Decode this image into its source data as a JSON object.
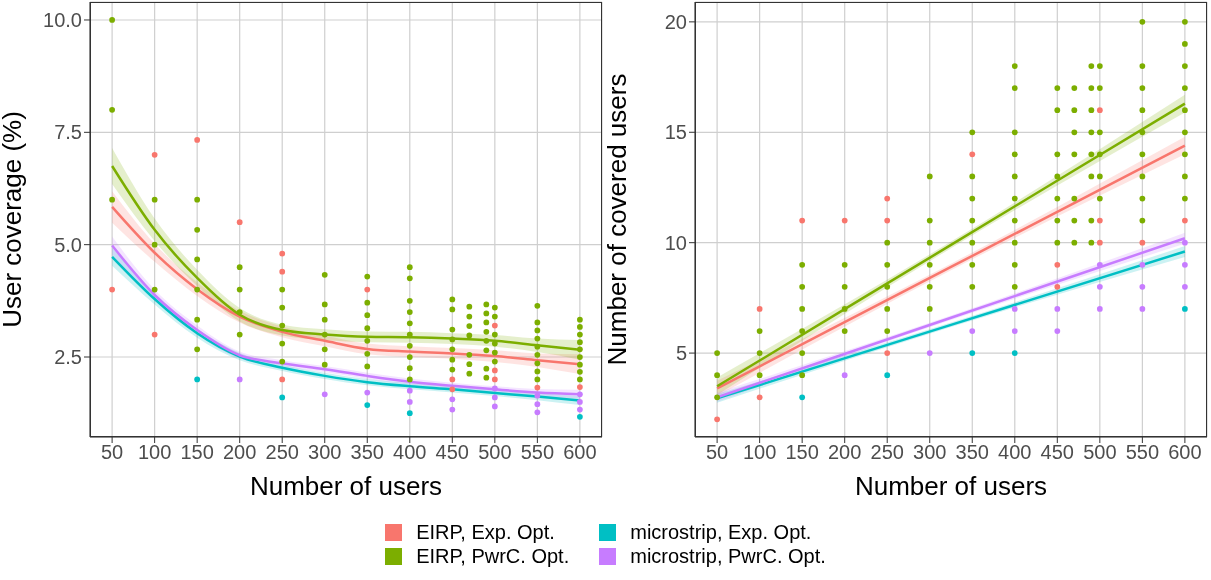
{
  "chart_data": [
    {
      "type": "scatter",
      "xlabel": "Number of users",
      "ylabel": "User coverage (%)",
      "xlim": [
        24,
        626
      ],
      "xticks": [
        50,
        100,
        150,
        200,
        250,
        300,
        350,
        400,
        450,
        500,
        550,
        600
      ],
      "ylim": [
        0.72,
        10.4
      ],
      "yticks": [
        2.5,
        {
          "value": 5,
          "label": "5.0"
        },
        7.5,
        {
          "value": 10,
          "label": "10.0"
        }
      ],
      "grid": true,
      "legend": "bottom",
      "series": [
        {
          "name": "EIRP, Exp. Opt.",
          "marker": "circle",
          "color": "#f8766d",
          "x": [
            50,
            100,
            100,
            150,
            200,
            250,
            250,
            250,
            350,
            450,
            450,
            500,
            500,
            500,
            550,
            600
          ],
          "values": [
            4.0,
            3.0,
            7.0,
            7.33,
            5.5,
            2.0,
            4.4,
            4.8,
            4.0,
            1.78,
            2.0,
            2.0,
            2.2,
            3.2,
            1.82,
            1.83
          ]
        },
        {
          "name": "EIRP, PwrC. Opt.",
          "marker": "circle",
          "color": "#7cae00",
          "x": [
            50,
            50,
            50,
            100,
            100,
            100,
            150,
            150,
            150,
            150,
            150,
            150,
            200,
            200,
            200,
            200,
            250,
            250,
            250,
            250,
            250,
            300,
            300,
            300,
            300,
            300,
            300,
            350,
            350,
            350,
            350,
            350,
            350,
            350,
            400,
            400,
            400,
            400,
            400,
            400,
            400,
            400,
            400,
            400,
            450,
            450,
            450,
            450,
            450,
            450,
            450,
            470,
            470,
            470,
            470,
            470,
            470,
            470,
            490,
            490,
            490,
            490,
            490,
            490,
            490,
            490,
            500,
            500,
            500,
            500,
            500,
            500,
            550,
            550,
            550,
            550,
            550,
            550,
            550,
            550,
            550,
            600,
            600,
            600,
            600,
            600,
            600,
            600,
            600,
            600
          ],
          "values": [
            6,
            8,
            10,
            4,
            5,
            6,
            2.67,
            3.33,
            4,
            4.67,
            5.33,
            6,
            3,
            3.5,
            4,
            4.5,
            2.4,
            2.8,
            3.2,
            3.6,
            4,
            2.33,
            2.67,
            3,
            3.33,
            3.67,
            4.33,
            2.29,
            2.57,
            2.86,
            3.14,
            3.43,
            3.71,
            4.29,
            2,
            2.25,
            2.5,
            2.75,
            3,
            3.25,
            3.5,
            3.75,
            4.25,
            4.5,
            2.22,
            2.44,
            2.67,
            2.89,
            3.11,
            3.56,
            3.78,
            2.13,
            2.34,
            2.55,
            2.98,
            3.19,
            3.4,
            3.62,
            2.04,
            2.24,
            2.65,
            2.86,
            3.06,
            3.27,
            3.47,
            3.67,
            2.4,
            2.6,
            2.8,
            3,
            3.4,
            3.6,
            2,
            2.18,
            2.36,
            2.55,
            2.73,
            2.91,
            3.09,
            3.27,
            3.64,
            2,
            2.17,
            2.33,
            2.5,
            2.67,
            2.83,
            3,
            3.17,
            3.33
          ]
        },
        {
          "name": "microstrip, Exp. Opt.",
          "marker": "circle",
          "color": "#00bfc4",
          "x": [
            150,
            250,
            350,
            400,
            600
          ],
          "values": [
            2,
            1.6,
            1.43,
            1.25,
            1.17
          ]
        },
        {
          "name": "microstrip, PwrC. Opt.",
          "marker": "circle",
          "color": "#c77cff",
          "x": [
            200,
            300,
            350,
            400,
            400,
            450,
            450,
            500,
            500,
            500,
            550,
            550,
            550,
            600,
            600,
            600
          ],
          "values": [
            2,
            1.67,
            1.71,
            1.5,
            1.75,
            1.33,
            1.56,
            1.4,
            1.6,
            1.8,
            1.27,
            1.45,
            1.64,
            1.33,
            1.5,
            1.67
          ]
        },
        {
          "type": "line",
          "color": "#f8766d",
          "x": [
            50,
            100,
            150,
            200,
            250,
            300,
            350,
            400,
            450,
            500,
            550,
            600
          ],
          "values": [
            5.84,
            4.82,
            4.01,
            3.4,
            3.06,
            2.86,
            2.68,
            2.62,
            2.58,
            2.52,
            2.43,
            2.34
          ],
          "lower": [
            5.49,
            4.62,
            3.86,
            3.27,
            2.94,
            2.74,
            2.56,
            2.5,
            2.46,
            2.39,
            2.28,
            2.12
          ],
          "upper": [
            6.19,
            5.02,
            4.16,
            3.53,
            3.18,
            2.98,
            2.8,
            2.74,
            2.7,
            2.65,
            2.58,
            2.56
          ]
        },
        {
          "type": "line",
          "color": "#7cae00",
          "x": [
            50,
            100,
            150,
            200,
            250,
            300,
            350,
            400,
            450,
            500,
            550,
            600
          ],
          "values": [
            6.75,
            5.33,
            4.26,
            3.44,
            3.1,
            3.0,
            2.95,
            2.94,
            2.91,
            2.86,
            2.76,
            2.66
          ],
          "lower": [
            6.35,
            5.08,
            4.08,
            3.29,
            2.98,
            2.88,
            2.83,
            2.82,
            2.79,
            2.73,
            2.61,
            2.44
          ],
          "upper": [
            7.15,
            5.58,
            4.44,
            3.59,
            3.22,
            3.12,
            3.07,
            3.06,
            3.03,
            2.99,
            2.91,
            2.88
          ]
        },
        {
          "type": "line",
          "color": "#00bfc4",
          "x": [
            50,
            100,
            150,
            200,
            250,
            300,
            350,
            400,
            450,
            500,
            550,
            600
          ],
          "values": [
            4.73,
            3.79,
            3.03,
            2.51,
            2.26,
            2.08,
            1.94,
            1.85,
            1.78,
            1.7,
            1.62,
            1.53
          ],
          "lower": [
            4.53,
            3.67,
            2.93,
            2.43,
            2.19,
            2.01,
            1.87,
            1.78,
            1.71,
            1.63,
            1.54,
            1.43
          ],
          "upper": [
            4.93,
            3.91,
            3.13,
            2.59,
            2.33,
            2.15,
            2.01,
            1.92,
            1.85,
            1.77,
            1.7,
            1.63
          ]
        },
        {
          "type": "line",
          "color": "#c77cff",
          "x": [
            50,
            100,
            150,
            200,
            250,
            300,
            350,
            400,
            450,
            500,
            550,
            600
          ],
          "values": [
            4.98,
            3.88,
            3.1,
            2.54,
            2.36,
            2.23,
            2.08,
            1.95,
            1.86,
            1.78,
            1.71,
            1.67
          ],
          "lower": [
            4.78,
            3.76,
            3.0,
            2.46,
            2.29,
            2.16,
            2.01,
            1.88,
            1.79,
            1.71,
            1.63,
            1.57
          ],
          "upper": [
            5.18,
            4.0,
            3.2,
            2.62,
            2.43,
            2.3,
            2.15,
            2.02,
            1.93,
            1.85,
            1.79,
            1.77
          ]
        }
      ]
    },
    {
      "type": "scatter",
      "xlabel": "Number of users",
      "ylabel": "Number of covered users",
      "xlim": [
        24,
        626
      ],
      "xticks": [
        50,
        100,
        150,
        200,
        250,
        300,
        350,
        400,
        450,
        500,
        550,
        600
      ],
      "ylim": [
        1.2,
        20.9
      ],
      "yticks": [
        5,
        10,
        15,
        20
      ],
      "grid": true,
      "series": [
        {
          "marker": "circle",
          "color": "#f8766d",
          "x": [
            50,
            100,
            100,
            150,
            200,
            250,
            250,
            250,
            350,
            450,
            450,
            500,
            500,
            500,
            550,
            600
          ],
          "values": [
            2,
            3,
            7,
            11,
            11,
            5,
            11,
            12,
            14,
            8,
            9,
            10,
            11,
            16,
            10,
            11
          ]
        },
        {
          "marker": "circle",
          "color": "#7cae00",
          "x": [
            50,
            50,
            50,
            100,
            100,
            100,
            150,
            150,
            150,
            150,
            150,
            150,
            200,
            200,
            200,
            200,
            250,
            250,
            250,
            250,
            250,
            300,
            300,
            300,
            300,
            300,
            300,
            350,
            350,
            350,
            350,
            350,
            350,
            350,
            400,
            400,
            400,
            400,
            400,
            400,
            400,
            400,
            400,
            400,
            450,
            450,
            450,
            450,
            450,
            450,
            450,
            470,
            470,
            470,
            470,
            470,
            470,
            470,
            490,
            490,
            490,
            490,
            490,
            490,
            490,
            490,
            500,
            500,
            500,
            500,
            500,
            500,
            550,
            550,
            550,
            550,
            550,
            550,
            550,
            550,
            550,
            600,
            600,
            600,
            600,
            600,
            600,
            600,
            600,
            600
          ],
          "values": [
            3,
            4,
            5,
            4,
            5,
            6,
            4,
            5,
            6,
            7,
            8,
            9,
            6,
            7,
            8,
            9,
            6,
            7,
            8,
            9,
            10,
            7,
            8,
            9,
            10,
            11,
            13,
            8,
            9,
            10,
            11,
            12,
            13,
            15,
            8,
            9,
            10,
            11,
            12,
            13,
            14,
            15,
            17,
            18,
            10,
            11,
            12,
            13,
            14,
            16,
            17,
            10,
            11,
            12,
            14,
            15,
            16,
            17,
            10,
            11,
            13,
            14,
            15,
            16,
            17,
            18,
            12,
            13,
            14,
            15,
            17,
            18,
            11,
            12,
            13,
            14,
            15,
            16,
            17,
            18,
            20,
            12,
            13,
            14,
            15,
            16,
            17,
            18,
            19,
            20
          ]
        },
        {
          "marker": "circle",
          "color": "#00bfc4",
          "x": [
            150,
            250,
            350,
            400,
            600
          ],
          "values": [
            3,
            4,
            5,
            5,
            7
          ]
        },
        {
          "marker": "circle",
          "color": "#c77cff",
          "x": [
            200,
            300,
            350,
            400,
            400,
            450,
            450,
            500,
            500,
            500,
            550,
            550,
            550,
            600,
            600,
            600
          ],
          "values": [
            4,
            5,
            6,
            6,
            7,
            6,
            7,
            7,
            8,
            9,
            7,
            8,
            9,
            8,
            9,
            10
          ]
        },
        {
          "type": "line",
          "color": "#f8766d",
          "x": [
            50,
            325,
            600
          ],
          "values": [
            3.4,
            8.9,
            14.4
          ],
          "lower": [
            3.05,
            8.75,
            14.0
          ],
          "upper": [
            3.75,
            9.05,
            14.8
          ]
        },
        {
          "type": "line",
          "color": "#7cae00",
          "x": [
            50,
            325,
            600
          ],
          "values": [
            3.5,
            9.9,
            16.3
          ],
          "lower": [
            3.1,
            9.75,
            15.9
          ],
          "upper": [
            3.9,
            10.05,
            16.7
          ]
        },
        {
          "type": "line",
          "color": "#00bfc4",
          "x": [
            50,
            325,
            600
          ],
          "values": [
            2.95,
            6.28,
            9.6
          ],
          "lower": [
            2.75,
            6.18,
            9.35
          ],
          "upper": [
            3.15,
            6.38,
            9.85
          ]
        },
        {
          "type": "line",
          "color": "#c77cff",
          "x": [
            50,
            325,
            600
          ],
          "values": [
            3.0,
            6.6,
            10.2
          ],
          "lower": [
            2.8,
            6.5,
            9.95
          ],
          "upper": [
            3.2,
            6.7,
            10.45
          ]
        }
      ]
    }
  ]
}
